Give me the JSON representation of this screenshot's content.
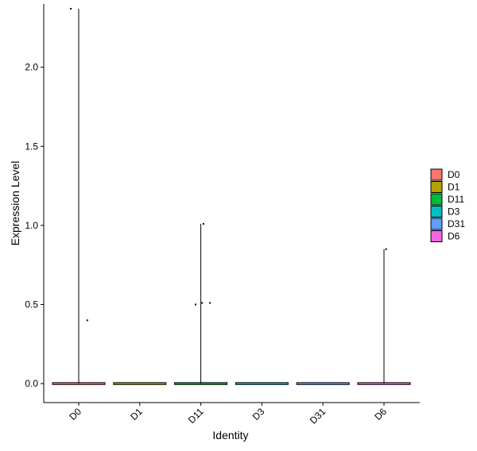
{
  "chart_data": {
    "type": "violin",
    "title": "",
    "xlabel": "Identity",
    "ylabel": "Expression Level",
    "categories": [
      "D0",
      "D1",
      "D11",
      "D3",
      "D31",
      "D6"
    ],
    "ylim": [
      -0.12,
      2.4
    ],
    "yticks": [
      0.0,
      0.5,
      1.0,
      1.5,
      2.0
    ],
    "ytick_labels": [
      "0.0",
      "0.5",
      "1.0",
      "1.5",
      "2.0"
    ],
    "series": [
      {
        "category": "D0",
        "color": "#F8766D",
        "max": 2.37,
        "points": [
          {
            "jitter": -0.3,
            "y": 2.37
          },
          {
            "jitter": 0.33,
            "y": 0.4
          }
        ]
      },
      {
        "category": "D1",
        "color": "#B79F00",
        "max": 0.0,
        "points": []
      },
      {
        "category": "D11",
        "color": "#00BA38",
        "max": 1.01,
        "points": [
          {
            "jitter": -0.2,
            "y": 0.5
          },
          {
            "jitter": 0.05,
            "y": 0.51
          },
          {
            "jitter": 0.1,
            "y": 1.01
          },
          {
            "jitter": 0.35,
            "y": 0.51
          }
        ]
      },
      {
        "category": "D3",
        "color": "#00BFC4",
        "max": 0.0,
        "points": []
      },
      {
        "category": "D31",
        "color": "#619CFF",
        "max": 0.0,
        "points": []
      },
      {
        "category": "D6",
        "color": "#F564E3",
        "max": 0.85,
        "points": [
          {
            "jitter": 0.08,
            "y": 0.85
          }
        ]
      }
    ],
    "legend": {
      "position": "right",
      "entries": [
        "D0",
        "D1",
        "D11",
        "D3",
        "D31",
        "D6"
      ]
    },
    "grid": false
  }
}
